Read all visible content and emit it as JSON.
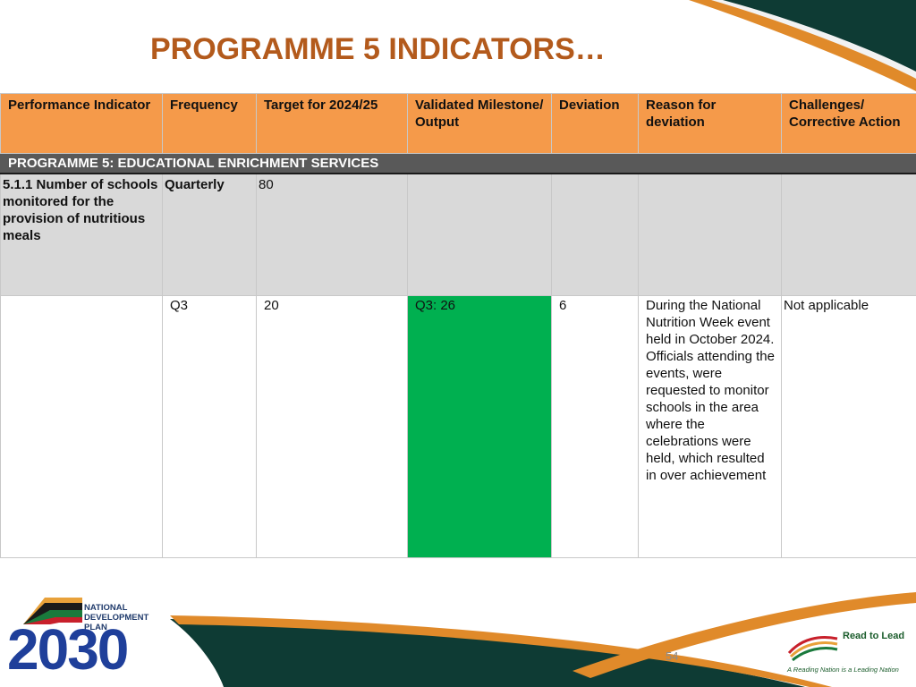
{
  "slide": {
    "title": "PROGRAMME 5 INDICATORS…",
    "page_number": "54"
  },
  "table": {
    "headers": [
      "Performance Indicator",
      "Frequency",
      "Target for 2024/25",
      "Validated Milestone/ Output",
      "Deviation",
      "Reason for deviation",
      "Challenges/ Corrective Action"
    ],
    "section": "PROGRAMME 5: EDUCATIONAL ENRICHMENT SERVICES",
    "indicator_row": {
      "indicator": "5.1.1 Number of schools monitored for the provision of nutritious meals",
      "frequency": "Quarterly",
      "target": "80",
      "milestone": "",
      "deviation": "",
      "reason": "",
      "challenges": ""
    },
    "quarter_row": {
      "indicator": "",
      "frequency": "Q3",
      "target": "20",
      "milestone": "Q3: 26",
      "deviation": "6",
      "reason": "During the National Nutrition Week event held in October 2024. Officials attending the events, were requested to monitor schools in the area where the celebrations were held, which resulted in over achievement",
      "challenges": "Not applicable"
    }
  },
  "logos": {
    "ndp_text": "NATIONAL\nDEVELOPMENT\nPLAN",
    "ndp_year": "2030",
    "read_to_lead_title": "Read to Lead",
    "read_to_lead_tagline": "A Reading Nation is a Leading Nation"
  },
  "colors": {
    "title": "#b35a1c",
    "header_bg": "#f59a4a",
    "section_bg": "#595959",
    "indicator_bg": "#d9d9d9",
    "achieved_bg": "#00b050",
    "swoosh_dark": "#0e3b34",
    "swoosh_orange": "#e08a2a"
  }
}
